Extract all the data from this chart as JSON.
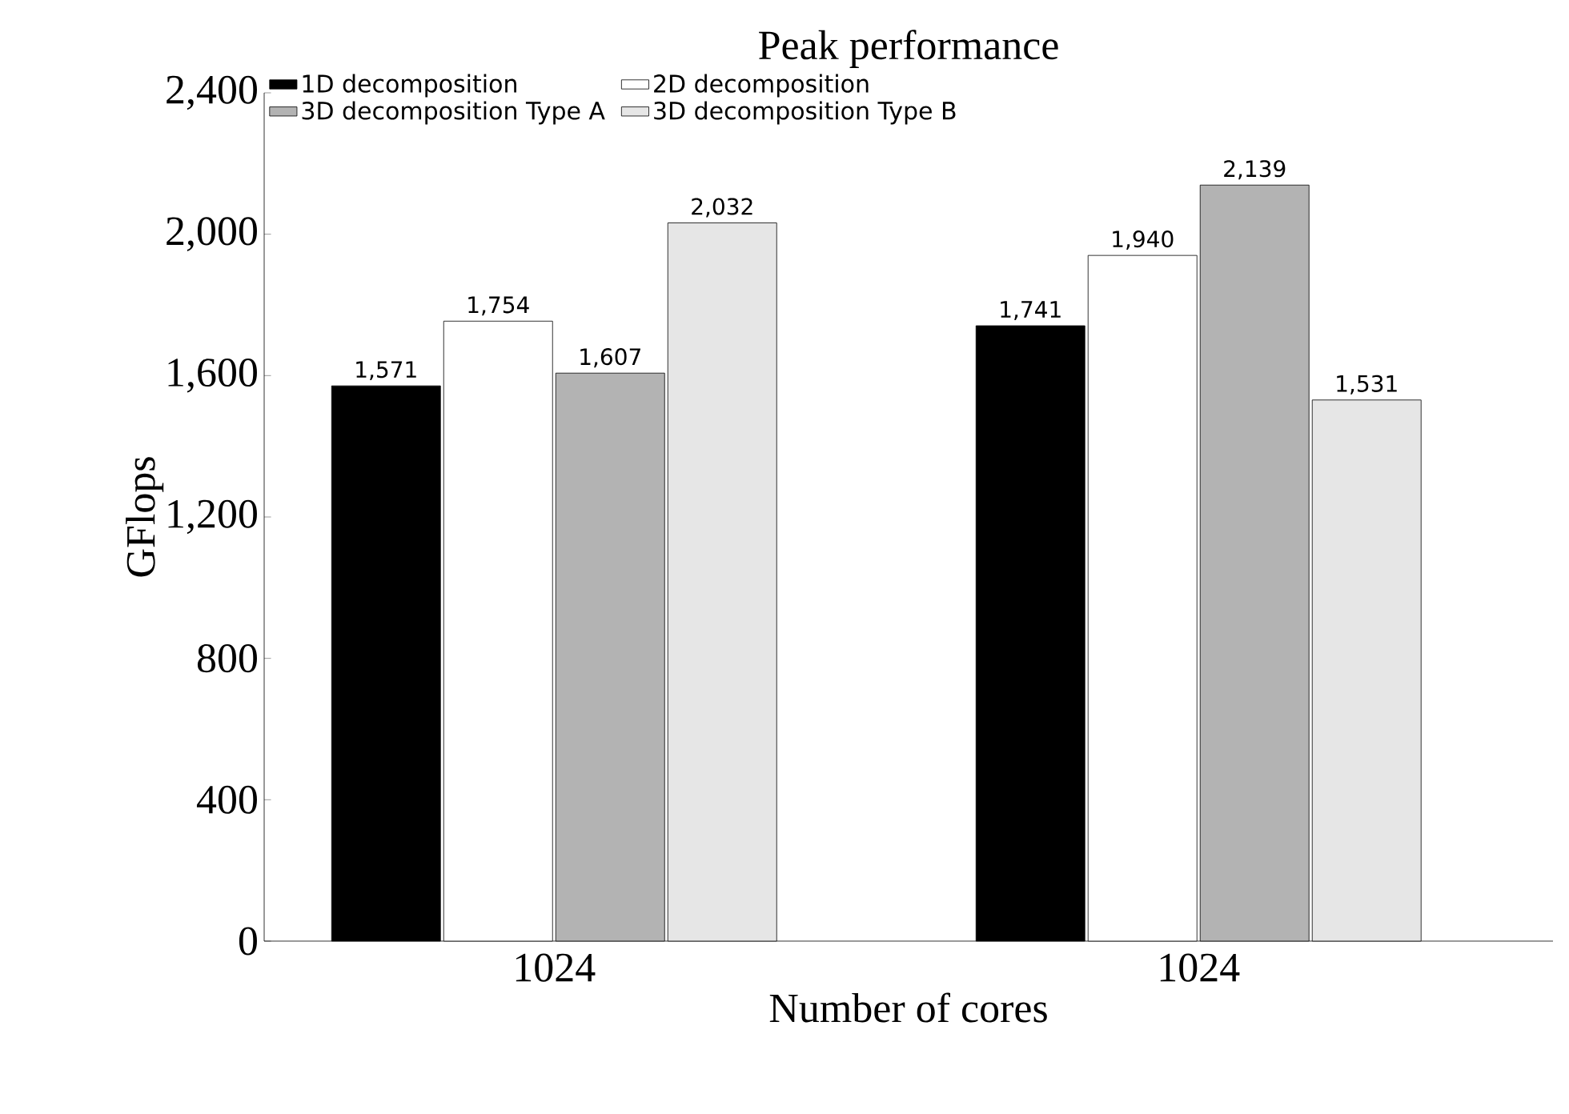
{
  "chart_data": {
    "type": "bar",
    "title": "Peak performance",
    "xlabel": "Number of cores",
    "ylabel": "GFlops",
    "categories": [
      "1024",
      "1024"
    ],
    "series": [
      {
        "name": "1D decomposition",
        "color": "#000000",
        "values": [
          1571,
          1741
        ],
        "value_labels": [
          "1,571",
          "1,741"
        ]
      },
      {
        "name": "2D decomposition",
        "color": "#ffffff",
        "values": [
          1754,
          1940
        ],
        "value_labels": [
          "1,754",
          "1,940"
        ]
      },
      {
        "name": "3D decomposition Type A",
        "color": "#b3b3b3",
        "values": [
          1607,
          2139
        ],
        "value_labels": [
          "1,607",
          "2,139"
        ]
      },
      {
        "name": "3D decomposition Type B",
        "color": "#e6e6e6",
        "values": [
          2032,
          1531
        ],
        "value_labels": [
          "2,032",
          "1,531"
        ]
      }
    ],
    "ylim": [
      0,
      2400
    ],
    "yticks": [
      {
        "value": 0,
        "label": "0"
      },
      {
        "value": 400,
        "label": "400"
      },
      {
        "value": 800,
        "label": "800"
      },
      {
        "value": 1200,
        "label": "1,200"
      },
      {
        "value": 1600,
        "label": "1,600"
      },
      {
        "value": 2000,
        "label": "2,000"
      },
      {
        "value": 2400,
        "label": "2,400"
      }
    ],
    "legend": "top",
    "grid": false
  }
}
